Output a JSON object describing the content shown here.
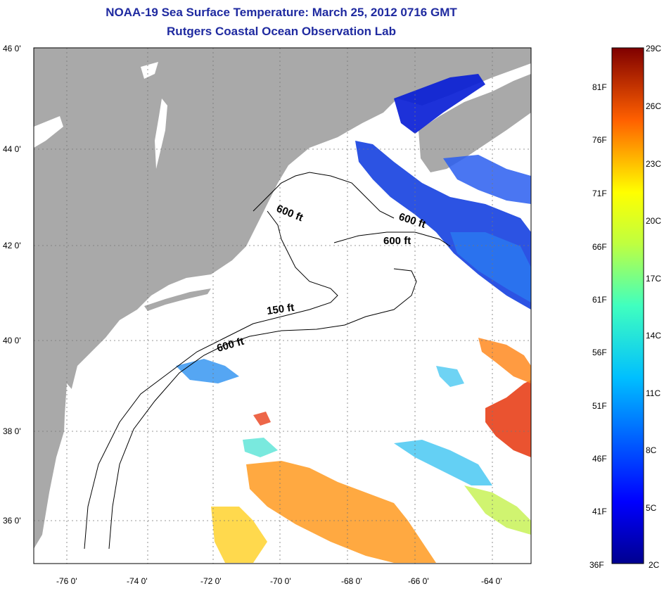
{
  "title": {
    "line1": "NOAA-19 Sea Surface Temperature:  March 25, 2012 0716 GMT",
    "line2": "Rutgers Coastal Ocean Observation Lab"
  },
  "map": {
    "lon_ticks": [
      "-76 0'",
      "-74 0'",
      "-72 0'",
      "-70 0'",
      "-68 0'",
      "-66 0'",
      "-64 0'"
    ],
    "lat_ticks": [
      "46 0'",
      "44 0'",
      "42 0'",
      "40 0'",
      "38 0'",
      "36 0'"
    ],
    "contour_labels": [
      "600 ft",
      "600 ft",
      "600 ft",
      "150 ft",
      "600 ft"
    ]
  },
  "colorbar": {
    "fahrenheit": [
      "81F",
      "76F",
      "71F",
      "66F",
      "61F",
      "56F",
      "51F",
      "46F",
      "41F",
      "36F"
    ],
    "celsius": [
      "29C",
      "26C",
      "23C",
      "20C",
      "17C",
      "14C",
      "11C",
      "8C",
      "5C",
      "2C"
    ]
  },
  "colors": {
    "title": "#1f2aa0",
    "land": "#a9a9a9",
    "ocean": "#ffffff",
    "cold": "#0a1fd6",
    "warm": "#e8401a"
  }
}
